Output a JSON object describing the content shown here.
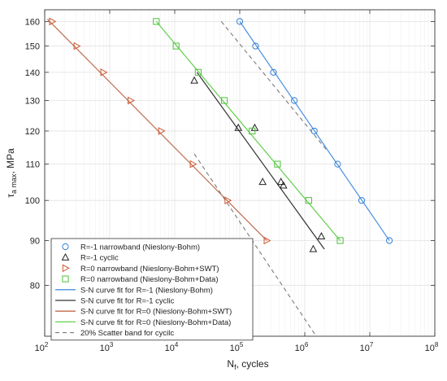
{
  "chart_data": {
    "type": "scatter",
    "title": "",
    "xlabel": {
      "base": "N",
      "sub": "f",
      "rest": ", cycles"
    },
    "ylabel": {
      "tau": "τ",
      "sub": "a max",
      "rest": ", MPa"
    },
    "xscale": "log",
    "xlim": [
      100,
      100000000
    ],
    "yscale": "log",
    "ylim": [
      70,
      165
    ],
    "x_ticks": [
      {
        "value": 100,
        "base": "10",
        "exp": "2"
      },
      {
        "value": 1000,
        "base": "10",
        "exp": "3"
      },
      {
        "value": 10000,
        "base": "10",
        "exp": "4"
      },
      {
        "value": 100000,
        "base": "10",
        "exp": "5"
      },
      {
        "value": 1000000,
        "base": "10",
        "exp": "6"
      },
      {
        "value": 10000000,
        "base": "10",
        "exp": "7"
      },
      {
        "value": 100000000,
        "base": "10",
        "exp": "8"
      }
    ],
    "y_ticks": [
      80,
      90,
      100,
      110,
      120,
      130,
      140,
      150,
      160
    ],
    "grid": true,
    "legend_position": "bottom-left",
    "series": [
      {
        "name": "R=-1 narrowband (Nieslony-Bohm)",
        "kind": "points",
        "marker": "circle",
        "color": "#2f7fd6",
        "points": [
          [
            100000,
            160
          ],
          [
            175000,
            150
          ],
          [
            330000,
            140
          ],
          [
            690000,
            130
          ],
          [
            1400000,
            120
          ],
          [
            3200000,
            110
          ],
          [
            7500000,
            100
          ],
          [
            20000000,
            90
          ]
        ]
      },
      {
        "name": "R=-1 cyclic",
        "kind": "points",
        "marker": "triangle-up",
        "color": "#222222",
        "points": [
          [
            20000,
            137
          ],
          [
            95000,
            121
          ],
          [
            170000,
            121
          ],
          [
            225000,
            105
          ],
          [
            430000,
            105
          ],
          [
            470000,
            104
          ],
          [
            1350000,
            88
          ],
          [
            1800000,
            91
          ]
        ]
      },
      {
        "name": "R=0 narrowband (Nieslony-Bohm+SWT)",
        "kind": "points",
        "marker": "triangle-right",
        "color": "#cc5a32",
        "points": [
          [
            130,
            160
          ],
          [
            310,
            150
          ],
          [
            800,
            140
          ],
          [
            2100,
            130
          ],
          [
            6200,
            120
          ],
          [
            19000,
            110
          ],
          [
            65000,
            100
          ],
          [
            260000,
            90
          ]
        ]
      },
      {
        "name": "R=0 narrowband (Nieslony-Bohm+Data)",
        "kind": "points",
        "marker": "square",
        "color": "#4fc23a",
        "points": [
          [
            5200,
            160
          ],
          [
            10500,
            150
          ],
          [
            23000,
            140
          ],
          [
            58000,
            130
          ],
          [
            155000,
            120
          ],
          [
            380000,
            110
          ],
          [
            1150000,
            100
          ],
          [
            3500000,
            90
          ]
        ]
      },
      {
        "name": "S-N curve fit for R=-1 (Nieslony-Bohm)",
        "kind": "line",
        "color": "#4a8fe0",
        "points": [
          [
            100000,
            160
          ],
          [
            20000000,
            90
          ]
        ]
      },
      {
        "name": "S-N curve fit for R=-1 cyclic",
        "kind": "line",
        "color": "#333333",
        "points": [
          [
            22000,
            140
          ],
          [
            2000000,
            88
          ]
        ]
      },
      {
        "name": "S-N curve fit for R=0 (Nieslony-Bohm+SWT)",
        "kind": "line",
        "color": "#c06a4e",
        "points": [
          [
            110,
            161
          ],
          [
            260000,
            90
          ]
        ]
      },
      {
        "name": "S-N curve fit for R=0 (Nieslony-Bohm+Data)",
        "kind": "line",
        "color": "#5fd04a",
        "points": [
          [
            5200,
            160
          ],
          [
            3500000,
            90
          ]
        ]
      },
      {
        "name": "20% Scatter band for cycilc",
        "kind": "dashed",
        "color": "#7a7a7a",
        "segments": [
          [
            [
              52000,
              160
            ],
            [
              2200000,
              114
            ]
          ],
          [
            [
              20000,
              113
            ],
            [
              1500000,
              70
            ]
          ]
        ]
      }
    ]
  }
}
